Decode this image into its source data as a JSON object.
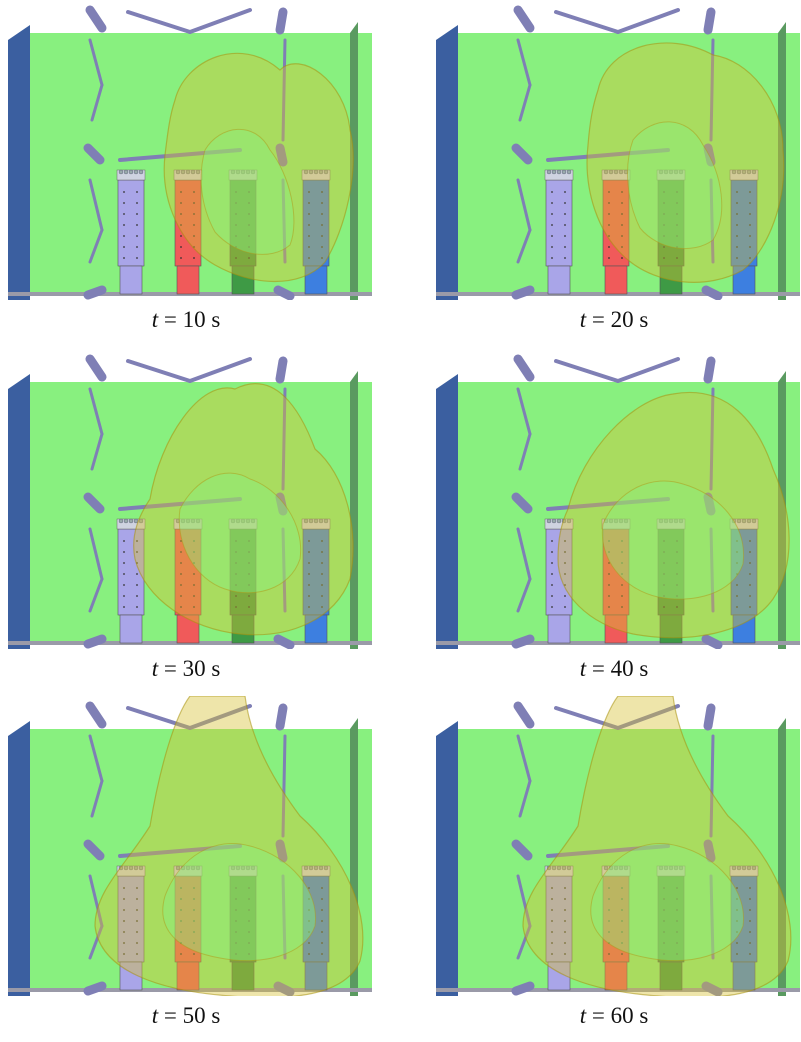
{
  "panels": [
    {
      "time_label": "t",
      "time_value": "= 10 s",
      "smoke_shape": "ring-right"
    },
    {
      "time_label": "t",
      "time_value": "= 20 s",
      "smoke_shape": "ring-right-tall"
    },
    {
      "time_label": "t",
      "time_value": "= 30 s",
      "smoke_shape": "ring-center"
    },
    {
      "time_label": "t",
      "time_value": "= 40 s",
      "smoke_shape": "ring-wide"
    },
    {
      "time_label": "t",
      "time_value": "= 50 s",
      "smoke_shape": "loop-large"
    },
    {
      "time_label": "t",
      "time_value": "= 60 s",
      "smoke_shape": "loop-large"
    }
  ],
  "colors": {
    "background_wall": "#88f07f",
    "left_wall": "#3b5fa0",
    "right_wall": "#5a9a60",
    "floor": "#9a9aa8",
    "fixtures": "#7f7fb5",
    "cabinet_purple": "#a9a5e8",
    "cabinet_red": "#f05a5a",
    "cabinet_green": "#3e9a45",
    "cabinet_blue": "#3d7fe0",
    "smoke": "#d7c234"
  }
}
